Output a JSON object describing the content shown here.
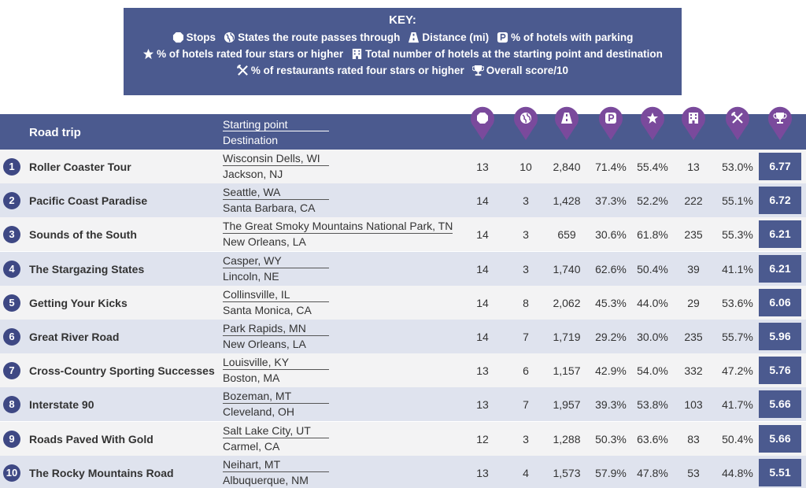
{
  "key": {
    "title": "KEY:",
    "lines": [
      [
        "Stops",
        "States the route passes through",
        "Distance (mi)",
        "% of hotels with parking"
      ],
      [
        "% of hotels rated four stars or higher",
        "Total number of hotels at the starting point and destination"
      ],
      [
        "% of restaurants rated four stars or higher",
        "Overall score/10"
      ]
    ]
  },
  "table": {
    "header": {
      "name": "Road trip",
      "start": "Starting point",
      "destination": "Destination"
    },
    "rows": [
      {
        "rank": "1",
        "name": "Roller Coaster Tour",
        "start": "Wisconsin Dells, WI",
        "destination": "Jackson, NJ",
        "cells": [
          "13",
          "10",
          "2,840",
          "71.4%",
          "55.4%",
          "13",
          "53.0%",
          "6.77"
        ]
      },
      {
        "rank": "2",
        "name": "Pacific Coast Paradise",
        "start": "Seattle, WA",
        "destination": "Santa Barbara, CA",
        "cells": [
          "14",
          "3",
          "1,428",
          "37.3%",
          "52.2%",
          "222",
          "55.1%",
          "6.72"
        ]
      },
      {
        "rank": "3",
        "name": "Sounds of the South",
        "start": "The Great Smoky Mountains National Park, TN",
        "destination": "New Orleans, LA",
        "cells": [
          "14",
          "3",
          "659",
          "30.6%",
          "61.8%",
          "235",
          "55.3%",
          "6.21"
        ]
      },
      {
        "rank": "4",
        "name": "The Stargazing States",
        "start": "Casper, WY",
        "destination": "Lincoln, NE",
        "cells": [
          "14",
          "3",
          "1,740",
          "62.6%",
          "50.4%",
          "39",
          "41.1%",
          "6.21"
        ]
      },
      {
        "rank": "5",
        "name": "Getting Your Kicks",
        "start": "Collinsville, IL",
        "destination": "Santa Monica, CA",
        "cells": [
          "14",
          "8",
          "2,062",
          "45.3%",
          "44.0%",
          "29",
          "53.6%",
          "6.06"
        ]
      },
      {
        "rank": "6",
        "name": "Great River Road",
        "start": "Park Rapids, MN",
        "destination": "New Orleans, LA",
        "cells": [
          "14",
          "7",
          "1,719",
          "29.2%",
          "30.0%",
          "235",
          "55.7%",
          "5.96"
        ]
      },
      {
        "rank": "7",
        "name": "Cross-Country Sporting Successes",
        "start": "Louisville, KY",
        "destination": "Boston, MA",
        "cells": [
          "13",
          "6",
          "1,157",
          "42.9%",
          "54.0%",
          "332",
          "47.2%",
          "5.76"
        ]
      },
      {
        "rank": "8",
        "name": "Interstate 90",
        "start": "Bozeman, MT",
        "destination": "Cleveland, OH",
        "cells": [
          "13",
          "7",
          "1,957",
          "39.3%",
          "53.8%",
          "103",
          "41.7%",
          "5.66"
        ]
      },
      {
        "rank": "9",
        "name": "Roads Paved With Gold",
        "start": "Salt Lake City, UT",
        "destination": "Carmel, CA",
        "cells": [
          "12",
          "3",
          "1,288",
          "50.3%",
          "63.6%",
          "83",
          "50.4%",
          "5.66"
        ]
      },
      {
        "rank": "10",
        "name": "The Rocky Mountains Road",
        "start": "Neihart, MT",
        "destination": "Albuquerque, NM",
        "cells": [
          "13",
          "4",
          "1,573",
          "57.9%",
          "47.8%",
          "53",
          "44.8%",
          "5.51"
        ]
      }
    ]
  }
}
